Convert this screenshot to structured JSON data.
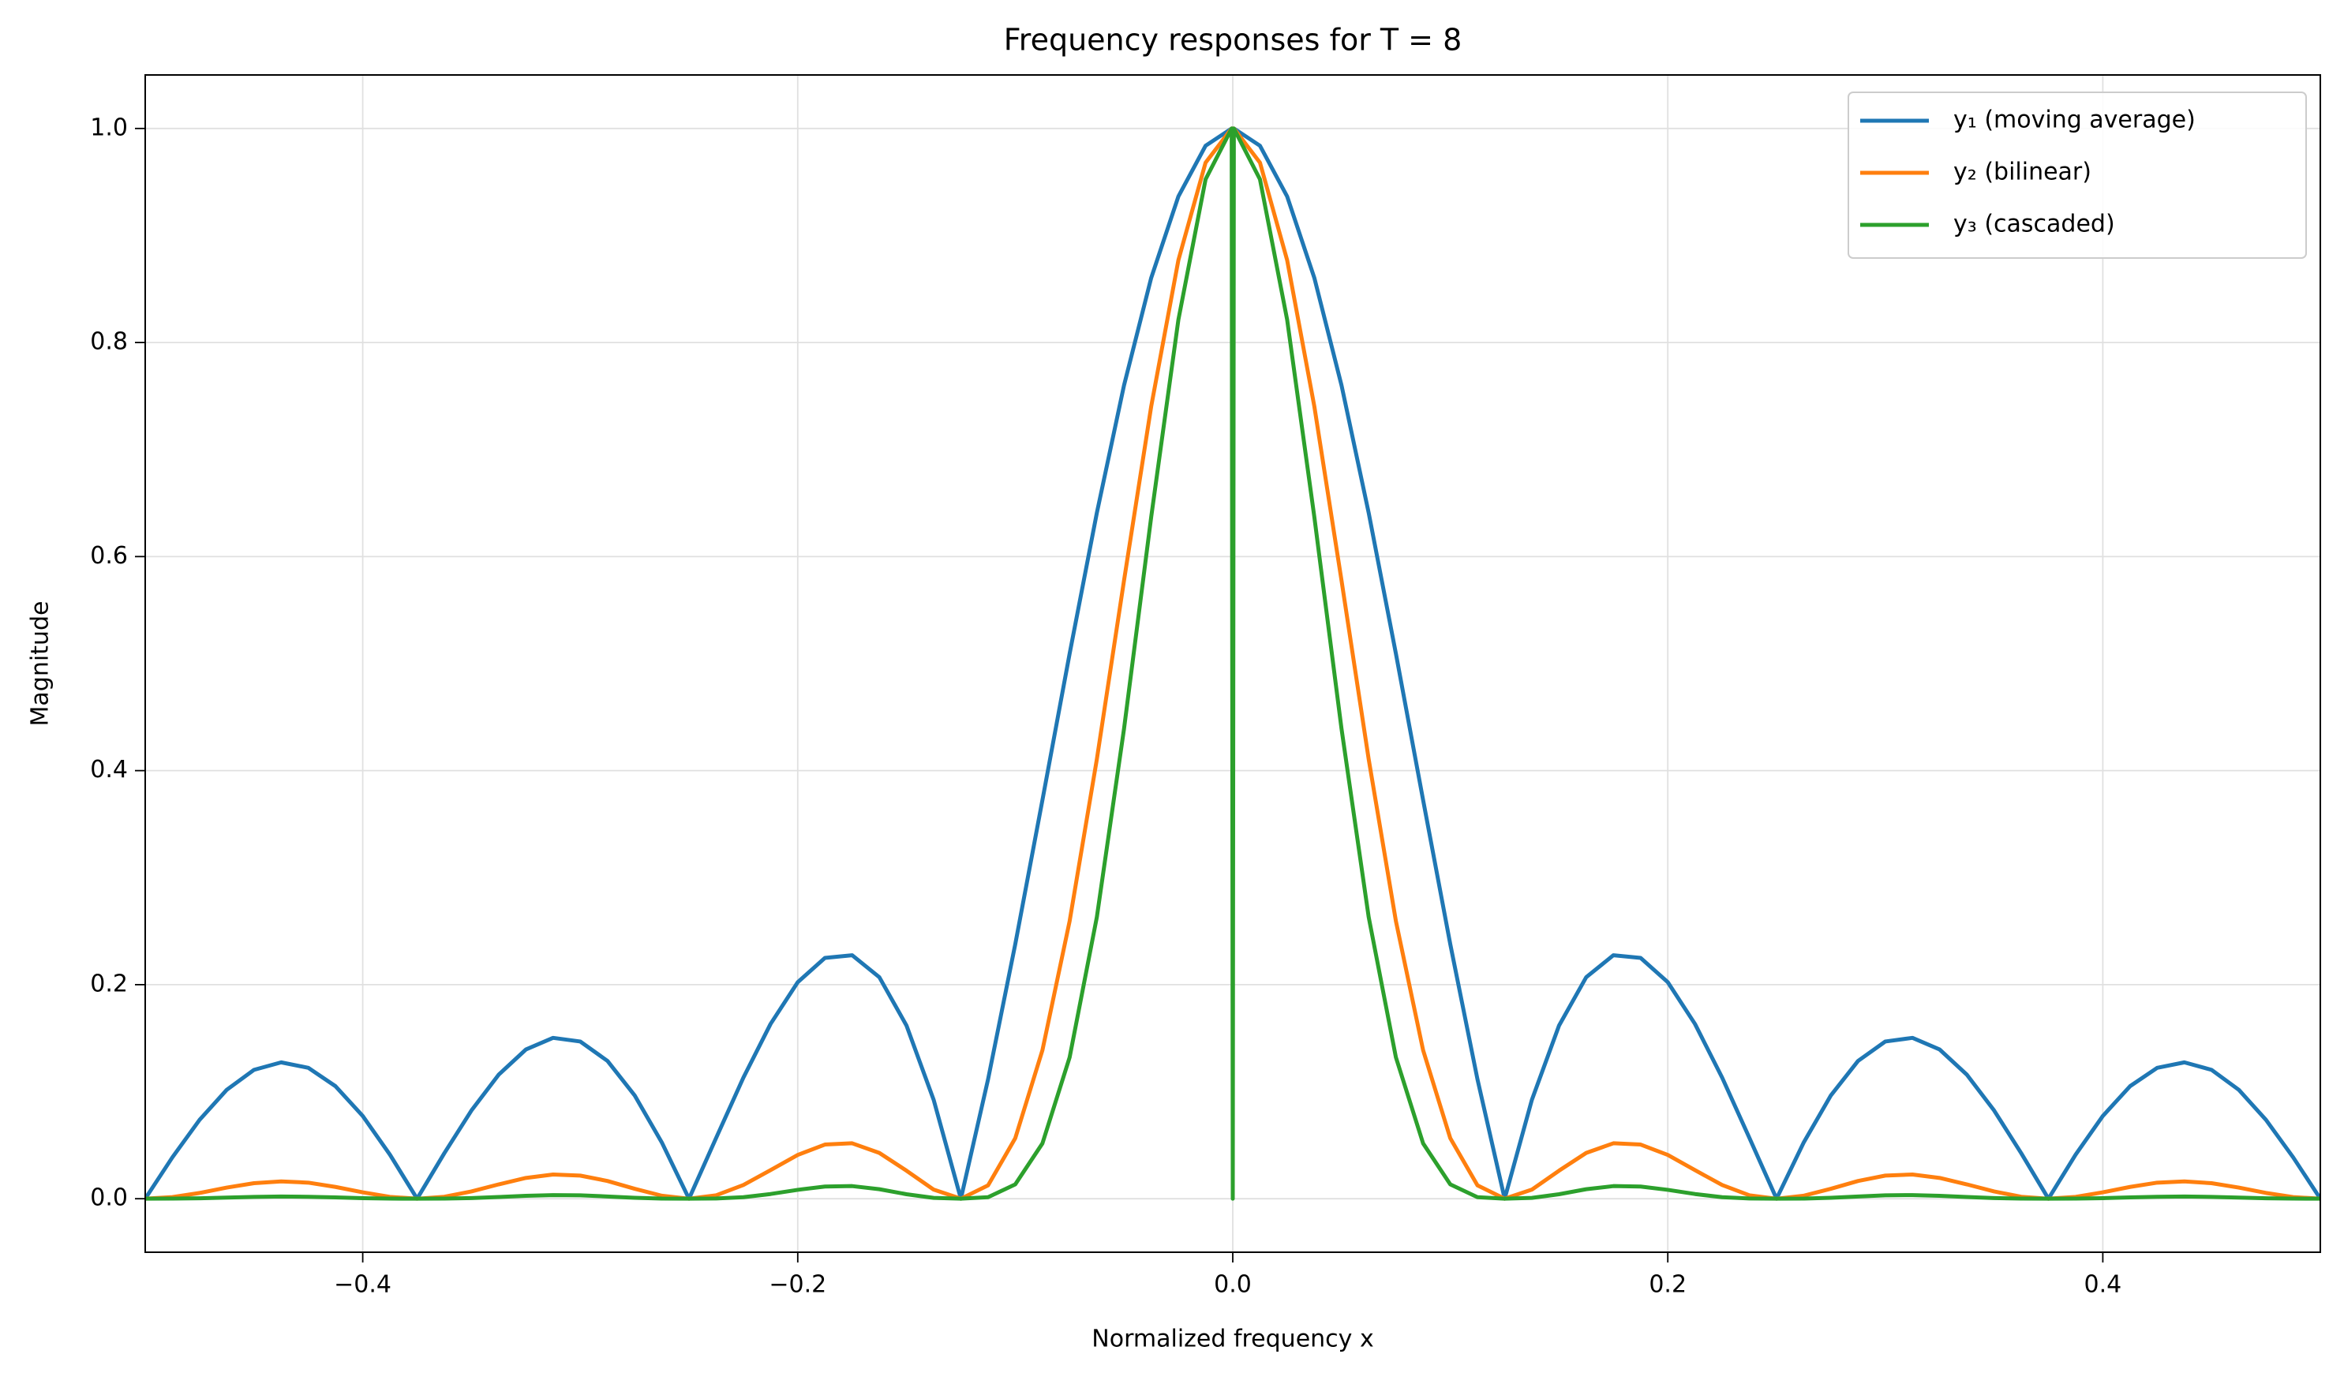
{
  "chart_data": {
    "type": "line",
    "title": "Frequency responses for T = 8",
    "x_label": "Normalized frequency x",
    "y_label": "Magnitude",
    "x": [
      -0.5,
      -0.4875,
      -0.475,
      -0.4625,
      -0.45,
      -0.4375,
      -0.425,
      -0.4125,
      -0.4,
      -0.3875,
      -0.375,
      -0.3625,
      -0.35,
      -0.3375,
      -0.325,
      -0.3125,
      -0.3,
      -0.2875,
      -0.275,
      -0.2625,
      -0.25,
      -0.2375,
      -0.225,
      -0.2125,
      -0.2,
      -0.1875,
      -0.175,
      -0.1625,
      -0.15,
      -0.1375,
      -0.125,
      -0.1125,
      -0.1,
      -0.0875,
      -0.075,
      -0.0625,
      -0.05,
      -0.0375,
      -0.025,
      -0.0125,
      -0.0005,
      0,
      0.0005,
      0.0125,
      0.025,
      0.0375,
      0.05,
      0.0625,
      0.075,
      0.0875,
      0.1,
      0.1125,
      0.125,
      0.1375,
      0.15,
      0.1625,
      0.175,
      0.1875,
      0.2,
      0.2125,
      0.225,
      0.2375,
      0.25,
      0.2625,
      0.275,
      0.2875,
      0.3,
      0.3125,
      0.325,
      0.3375,
      0.35,
      0.3625,
      0.375,
      0.3875,
      0.4,
      0.4125,
      0.425,
      0.4375,
      0.45,
      0.4625,
      0.475,
      0.4875,
      0.5
    ],
    "series": [
      {
        "name": "y₁ (moving average)",
        "color": "#1f77b4",
        "values": [
          0,
          0.0387,
          0.0737,
          0.1018,
          0.1204,
          0.1274,
          0.1223,
          0.1051,
          0.0773,
          0.0412,
          0,
          0.0425,
          0.0825,
          0.1159,
          0.1394,
          0.1503,
          0.1469,
          0.1288,
          0.0966,
          0.0526,
          0,
          0.0569,
          0.1131,
          0.1633,
          0.2023,
          0.225,
          0.2275,
          0.207,
          0.1618,
          0.0923,
          0,
          0.1116,
          0.2378,
          0.3726,
          0.5093,
          0.6407,
          0.76,
          0.8604,
          0.9365,
          0.9839,
          1,
          1,
          1,
          0.9839,
          0.9365,
          0.8604,
          0.76,
          0.6407,
          0.5093,
          0.3726,
          0.2378,
          0.1116,
          0,
          0.0923,
          0.1618,
          0.207,
          0.2275,
          0.225,
          0.2023,
          0.1633,
          0.1131,
          0.0569,
          0,
          0.0526,
          0.0966,
          0.1288,
          0.1469,
          0.1503,
          0.1394,
          0.1159,
          0.0825,
          0.0425,
          0,
          0.0412,
          0.0773,
          0.1051,
          0.1223,
          0.1274,
          0.1204,
          0.1018,
          0.0737,
          0.0387,
          0
        ]
      },
      {
        "name": "y₂ (bilinear)",
        "color": "#ff7f0e",
        "values": [
          0,
          0.0015,
          0.0054,
          0.0104,
          0.0145,
          0.0162,
          0.015,
          0.011,
          0.006,
          0.0017,
          0,
          0.0018,
          0.0068,
          0.0134,
          0.0194,
          0.0226,
          0.0216,
          0.0166,
          0.0093,
          0.0028,
          0,
          0.0032,
          0.0128,
          0.0267,
          0.0409,
          0.0506,
          0.0518,
          0.0428,
          0.0262,
          0.0085,
          0,
          0.0125,
          0.0565,
          0.1388,
          0.2594,
          0.4105,
          0.5776,
          0.7403,
          0.877,
          0.9681,
          1,
          1,
          1,
          0.9681,
          0.877,
          0.7403,
          0.5776,
          0.4105,
          0.2594,
          0.1388,
          0.0565,
          0.0125,
          0,
          0.0085,
          0.0262,
          0.0428,
          0.0518,
          0.0506,
          0.0409,
          0.0267,
          0.0128,
          0.0032,
          0,
          0.0028,
          0.0093,
          0.0166,
          0.0216,
          0.0226,
          0.0194,
          0.0134,
          0.0068,
          0.0018,
          0,
          0.0017,
          0.006,
          0.011,
          0.015,
          0.0162,
          0.0145,
          0.0104,
          0.0054,
          0.0015,
          0
        ]
      },
      {
        "name": "y₃ (cascaded)",
        "color": "#2ca02c",
        "values": [
          0,
          0.0001,
          0.0004,
          0.0011,
          0.0017,
          0.0021,
          0.0018,
          0.0012,
          0.0005,
          0.0001,
          0,
          0.0001,
          0.0006,
          0.0016,
          0.0027,
          0.0034,
          0.0032,
          0.0021,
          0.0009,
          0.0001,
          0,
          0.0002,
          0.0014,
          0.0044,
          0.0083,
          0.0114,
          0.0118,
          0.0089,
          0.0042,
          0.0008,
          0,
          0.0014,
          0.0134,
          0.0517,
          0.1321,
          0.263,
          0.439,
          0.637,
          0.8213,
          0.9525,
          1,
          0,
          1,
          0.9525,
          0.8213,
          0.637,
          0.439,
          0.263,
          0.1321,
          0.0517,
          0.0134,
          0.0014,
          0,
          0.0008,
          0.0042,
          0.0089,
          0.0118,
          0.0114,
          0.0083,
          0.0044,
          0.0014,
          0.0002,
          0,
          0.0001,
          0.0009,
          0.0021,
          0.0032,
          0.0034,
          0.0027,
          0.0016,
          0.0006,
          0.0001,
          0,
          0.0001,
          0.0005,
          0.0012,
          0.0018,
          0.0021,
          0.0017,
          0.0011,
          0.0004,
          0.0001,
          0
        ]
      }
    ],
    "xlim": [
      -0.5,
      0.5
    ],
    "xticks": [
      {
        "value": -0.4,
        "label": "−0.4"
      },
      {
        "value": -0.2,
        "label": "−0.2"
      },
      {
        "value": 0,
        "label": "0.0"
      },
      0.2,
      0.4
    ],
    "ylim": [
      -0.05,
      1.05
    ],
    "yticks": [
      {
        "value": 0,
        "label": "0.0"
      },
      0.2,
      0.4,
      0.6,
      0.8,
      {
        "value": 1,
        "label": "1.0"
      }
    ],
    "grid": true,
    "legend": "upper right"
  }
}
